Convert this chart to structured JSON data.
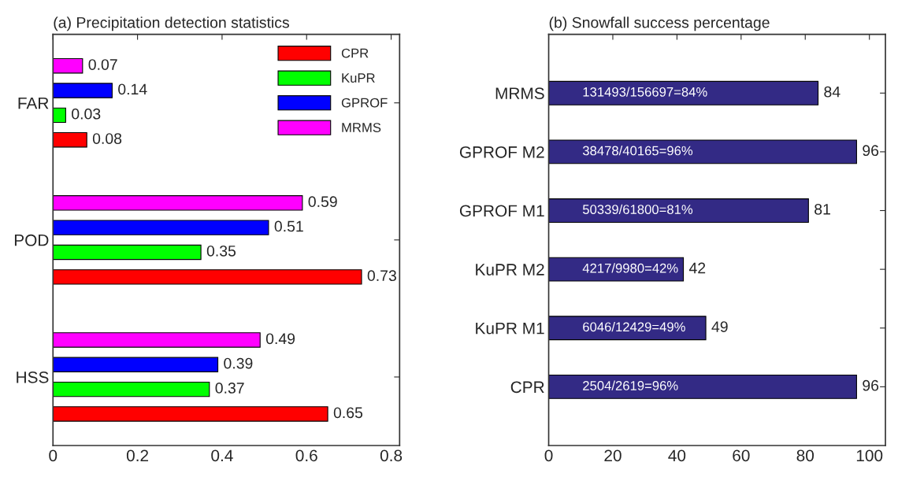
{
  "chart_data": [
    {
      "type": "bar",
      "orientation": "horizontal",
      "title": "(a) Precipitation detection statistics",
      "categories": [
        "FAR",
        "POD",
        "HSS"
      ],
      "series": [
        {
          "name": "CPR",
          "color": "#ff0000",
          "values": [
            0.08,
            0.73,
            0.65
          ]
        },
        {
          "name": "KuPR",
          "color": "#00ff00",
          "values": [
            0.03,
            0.35,
            0.37
          ]
        },
        {
          "name": "GPROF",
          "color": "#0000ff",
          "values": [
            0.14,
            0.51,
            0.39
          ]
        },
        {
          "name": "MRMS",
          "color": "#ff00ff",
          "values": [
            0.07,
            0.59,
            0.49
          ]
        }
      ],
      "xlim": [
        0,
        0.82
      ],
      "xticks": [
        0,
        0.2,
        0.4,
        0.6,
        0.8
      ],
      "data_labels": true,
      "legend": "top right",
      "grid": false
    },
    {
      "type": "bar",
      "orientation": "horizontal",
      "title": "(b) Snowfall success percentage",
      "categories": [
        "MRMS",
        "GPROF M2",
        "GPROF M1",
        "KuPR M2",
        "KuPR M1",
        "CPR"
      ],
      "values": [
        84,
        96,
        81,
        42,
        49,
        96
      ],
      "color": "#332a85",
      "xlim": [
        0,
        105
      ],
      "xticks": [
        0,
        20,
        40,
        60,
        80,
        100
      ],
      "data_labels": true,
      "grid": false,
      "annotations": [
        "131493/156697=84%",
        "38478/40165=96%",
        "50339/61800=81%",
        "4217/9980=42%",
        "6046/12429=49%",
        "2504/2619=96%"
      ]
    }
  ]
}
